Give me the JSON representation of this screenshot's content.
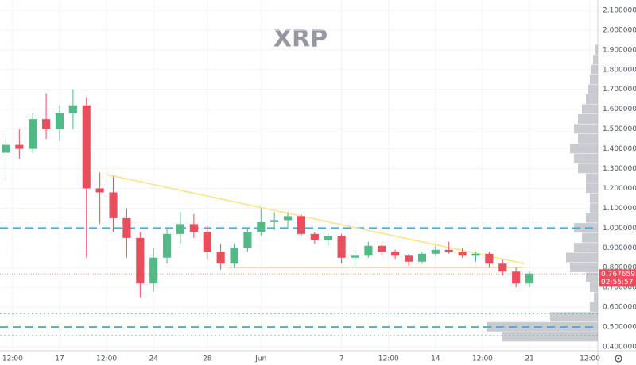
{
  "chart_data": {
    "type": "candlestick",
    "title": "XRP",
    "xlim": [
      12.56,
      57.09
    ],
    "xticks": [
      {
        "value": 13.5,
        "label": "12:00"
      },
      17,
      {
        "value": 20.5,
        "label": "12:00"
      },
      24,
      28,
      {
        "value": 32,
        "label": "Jun"
      },
      {
        "value": 38,
        "label": "7"
      },
      {
        "value": 41.5,
        "label": "12:00"
      },
      {
        "value": 45,
        "label": "14"
      },
      {
        "value": 48.5,
        "label": "12:00"
      },
      {
        "value": 52,
        "label": "21"
      },
      {
        "value": 56.5,
        "label": "12:00"
      }
    ],
    "ylim": [
      0.38,
      2.152
    ],
    "yticks": [
      {
        "value": 0.4,
        "label": "0.40000000"
      },
      {
        "value": 0.5,
        "label": "0.50000000"
      },
      {
        "value": 0.6,
        "label": "0.60000000"
      },
      {
        "value": 0.7,
        "label": "0.70000000"
      },
      {
        "value": 0.8,
        "label": "0.80000000"
      },
      {
        "value": 0.9,
        "label": "0.90000000"
      },
      {
        "value": 1.0,
        "label": "1.00000000"
      },
      {
        "value": 1.1,
        "label": "1.10000000"
      },
      {
        "value": 1.2,
        "label": "1.20000000"
      },
      {
        "value": 1.3,
        "label": "1.30000000"
      },
      {
        "value": 1.4,
        "label": "1.40000000"
      },
      {
        "value": 1.5,
        "label": "1.50000000"
      },
      {
        "value": 1.6,
        "label": "1.60000000"
      },
      {
        "value": 1.7,
        "label": "1.70000000"
      },
      {
        "value": 1.8,
        "label": "1.80000000"
      },
      {
        "value": 1.9,
        "label": "1.90000000"
      },
      {
        "value": 2.0,
        "label": "2.00000000"
      },
      {
        "value": 2.1,
        "label": "2.10000000"
      }
    ],
    "grid": true,
    "up_color": "#53b987",
    "down_color": "#eb4d5c",
    "x": [
      13,
      14,
      15,
      16,
      17,
      18,
      19,
      20,
      21,
      22,
      23,
      24,
      25,
      26,
      27,
      28,
      29,
      30,
      31,
      32,
      33,
      34,
      35,
      36,
      37,
      38,
      39,
      40,
      41,
      42,
      43,
      44,
      45,
      46,
      47,
      48,
      49,
      50,
      51,
      52
    ],
    "open": [
      1.38,
      1.42,
      1.4,
      1.55,
      1.5,
      1.58,
      1.62,
      1.2,
      1.18,
      1.05,
      0.95,
      0.72,
      0.85,
      0.97,
      1.02,
      0.98,
      0.88,
      0.82,
      0.9,
      0.98,
      1.03,
      1.04,
      1.06,
      0.97,
      0.94,
      0.96,
      0.85,
      0.86,
      0.91,
      0.88,
      0.86,
      0.83,
      0.87,
      0.89,
      0.88,
      0.86,
      0.87,
      0.82,
      0.78,
      0.72
    ],
    "high": [
      1.45,
      1.5,
      1.58,
      1.68,
      1.62,
      1.7,
      1.66,
      1.28,
      1.26,
      1.1,
      0.98,
      0.9,
      1.0,
      1.08,
      1.07,
      1.01,
      0.92,
      0.92,
      1.0,
      1.1,
      1.08,
      1.08,
      1.07,
      0.98,
      0.97,
      0.97,
      0.89,
      0.93,
      0.92,
      0.89,
      0.87,
      0.88,
      0.91,
      0.93,
      0.9,
      0.88,
      0.88,
      0.84,
      0.8,
      0.78
    ],
    "low": [
      1.25,
      1.35,
      1.38,
      1.45,
      1.44,
      1.5,
      0.85,
      1.02,
      0.98,
      0.85,
      0.65,
      0.68,
      0.82,
      0.92,
      0.95,
      0.84,
      0.79,
      0.8,
      0.88,
      0.96,
      0.99,
      1.0,
      0.96,
      0.92,
      0.91,
      0.82,
      0.8,
      0.85,
      0.86,
      0.84,
      0.81,
      0.82,
      0.86,
      0.87,
      0.85,
      0.83,
      0.8,
      0.76,
      0.7,
      0.7
    ],
    "close": [
      1.42,
      1.4,
      1.55,
      1.5,
      1.58,
      1.62,
      1.2,
      1.18,
      1.05,
      0.95,
      0.72,
      0.85,
      0.97,
      1.02,
      0.98,
      0.88,
      0.82,
      0.9,
      0.98,
      1.03,
      1.04,
      1.06,
      0.97,
      0.94,
      0.96,
      0.85,
      0.86,
      0.91,
      0.88,
      0.86,
      0.83,
      0.87,
      0.89,
      0.88,
      0.86,
      0.87,
      0.82,
      0.78,
      0.72,
      0.77
    ],
    "dashed_levels": [
      1.0,
      0.5
    ],
    "dashed_color": "#3bb3e4",
    "dotted_levels": [
      0.568,
      0.456
    ],
    "dotted_color": "#4aa88f",
    "trendline_color": "#ffe082",
    "trendlines": [
      {
        "x": [
          20.5,
          51.6
        ],
        "y": [
          1.27,
          0.82
        ]
      },
      {
        "x": [
          29.5,
          51.5
        ],
        "y": [
          0.8,
          0.8
        ]
      }
    ],
    "last_price": 0.76765959,
    "countdown": "02:55:57",
    "volume_profile": {
      "color": "#b2b5be",
      "xlim": [
        0,
        150
      ],
      "prices": [
        0.45,
        0.5,
        0.55,
        0.6,
        0.65,
        0.7,
        0.75,
        0.8,
        0.85,
        0.9,
        0.95,
        1.0,
        1.05,
        1.1,
        1.15,
        1.2,
        1.25,
        1.3,
        1.35,
        1.4,
        1.45,
        1.5,
        1.55,
        1.6,
        1.65,
        1.7,
        1.75,
        1.8,
        1.85,
        1.9
      ],
      "values": [
        120,
        140,
        60,
        10,
        5,
        10,
        15,
        35,
        40,
        30,
        20,
        30,
        15,
        10,
        10,
        15,
        15,
        25,
        30,
        35,
        25,
        30,
        25,
        20,
        15,
        12,
        10,
        8,
        6,
        3
      ]
    }
  }
}
